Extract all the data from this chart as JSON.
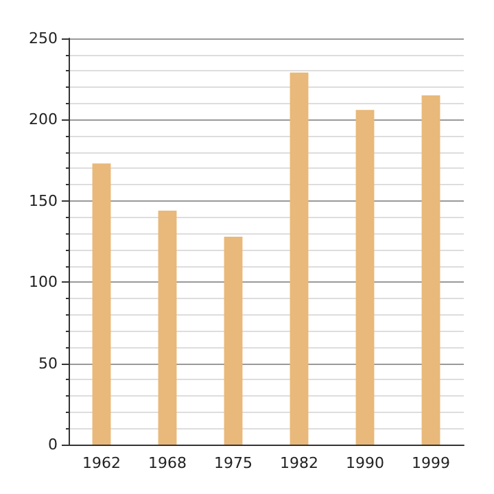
{
  "chart_data": {
    "type": "bar",
    "categories": [
      "1962",
      "1968",
      "1975",
      "1982",
      "1990",
      "1999"
    ],
    "values": [
      173,
      144,
      128,
      229,
      206,
      215
    ],
    "color": "#e8b97a",
    "ylim": [
      0,
      250
    ],
    "yticks": [
      0,
      50,
      100,
      150,
      200,
      250
    ],
    "grid": "y"
  }
}
